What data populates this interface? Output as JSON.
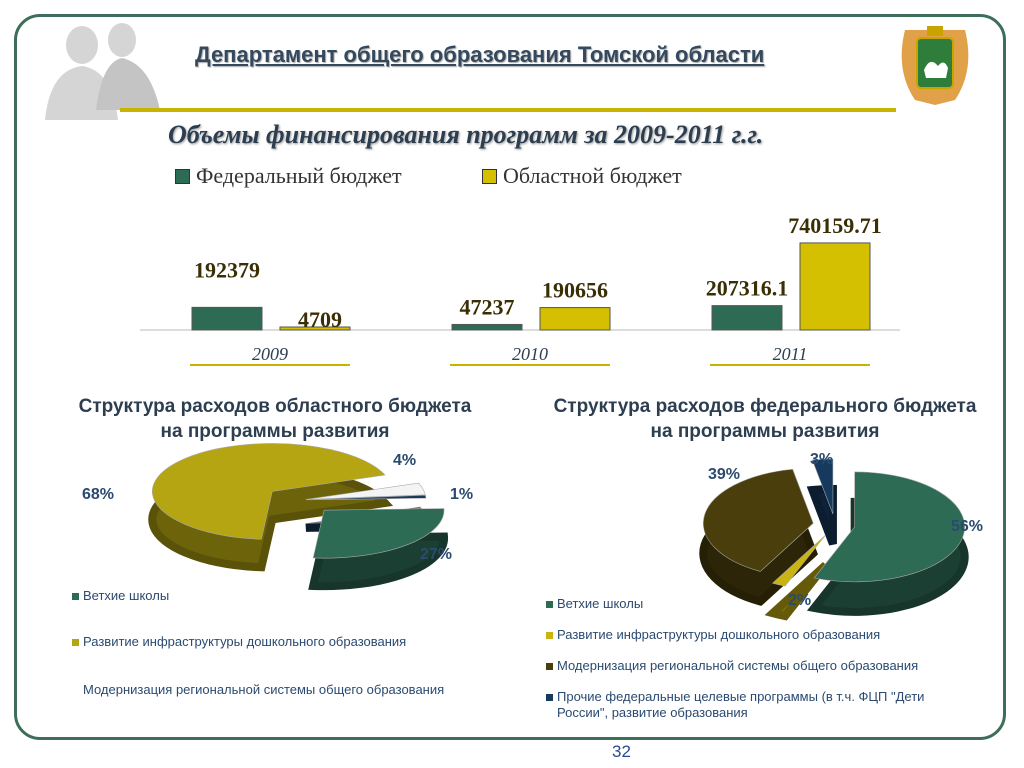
{
  "header": {
    "title": "Департамент общего образования Томской области"
  },
  "subtitle": "Объемы финансирования программ за 2009-2011 г.г.",
  "chart_data": [
    {
      "type": "bar",
      "title": "Объемы финансирования программ за 2009-2011 г.г.",
      "categories": [
        "2009",
        "2010",
        "2011"
      ],
      "series": [
        {
          "name": "Федеральный бюджет",
          "color": "#2e6b55",
          "values": [
            192379,
            47237,
            207316.1
          ],
          "labels": [
            "192379",
            "47237",
            "207316.1"
          ]
        },
        {
          "name": "Областной бюджет",
          "color": "#d4c000",
          "values": [
            4709,
            190656,
            740159.71
          ],
          "labels": [
            "4709",
            "190656",
            "740159.71"
          ]
        }
      ],
      "ylim": [
        0,
        850000
      ],
      "legend": "top"
    },
    {
      "type": "pie",
      "title": "Структура расходов областного бюджета на программы развития",
      "slices": [
        {
          "name": "Ветхие школы",
          "value": 27,
          "label": "27%",
          "color": "#2e6b55"
        },
        {
          "name": "Развитие инфраструктуры дошкольного образования",
          "value": 68,
          "label": "68%",
          "color": "#b5a512"
        },
        {
          "name": "Модернизация региональной системы общего образования",
          "value": 4,
          "label": "4%",
          "color": "#f4f4f4"
        },
        {
          "name": "",
          "value": 1,
          "label": "1%",
          "color": "#163a5e"
        }
      ]
    },
    {
      "type": "pie",
      "title": "Структура расходов федерального бюджета на программы развития",
      "slices": [
        {
          "name": "Ветхие школы",
          "value": 56,
          "label": "56%",
          "color": "#2e6b55"
        },
        {
          "name": "Развитие инфраструктуры дошкольного образования",
          "value": 2,
          "label": "2%",
          "color": "#c9b412"
        },
        {
          "name": "Модернизация региональной системы общего образования",
          "value": 39,
          "label": "39%",
          "color": "#4a3f0c"
        },
        {
          "name": "Прочие федеральные  целевые программы (в т.ч.  ФЦП \"Дети России\", развитие образования",
          "value": 3,
          "label": "3%",
          "color": "#163a5e"
        }
      ]
    }
  ],
  "page_number": "32"
}
